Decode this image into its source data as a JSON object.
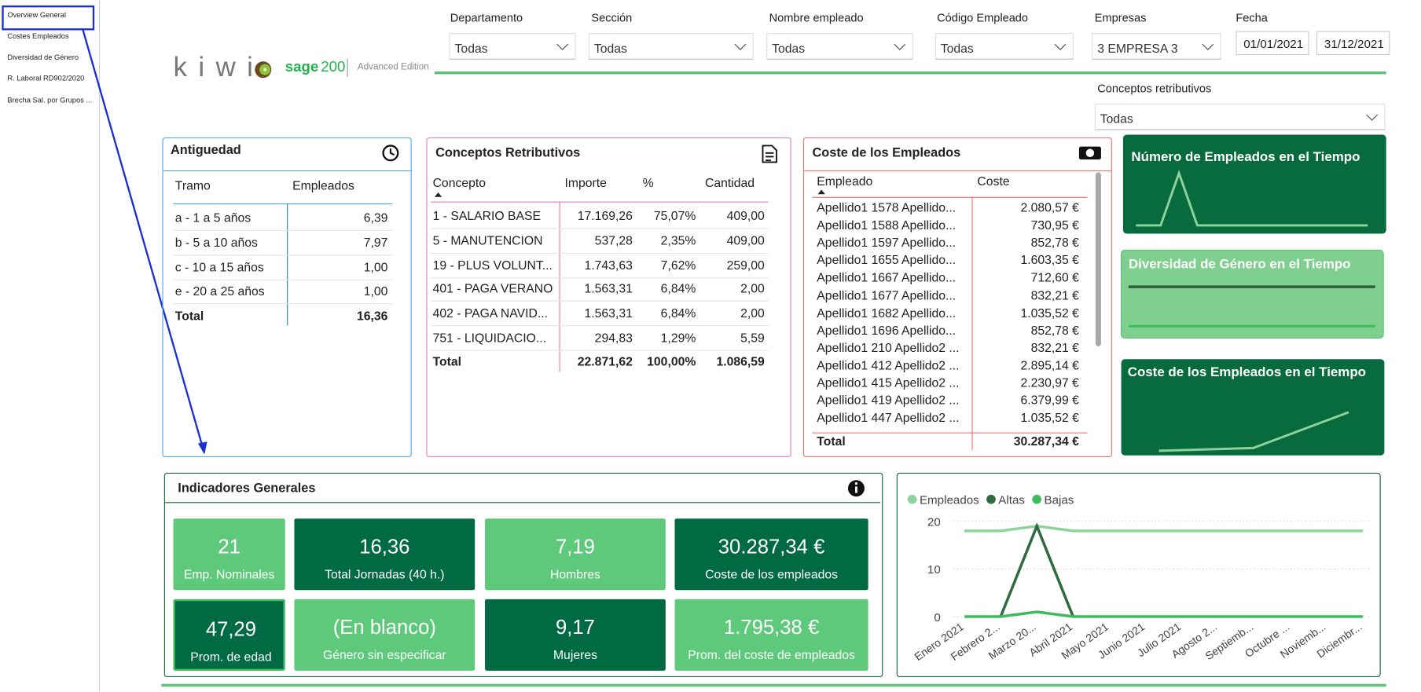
{
  "nav": [
    "Overview General",
    "Costes Empleados",
    "Diversidad de Género",
    "R. Laboral RD902/2020",
    "Brecha Sal. por Grupos ..."
  ],
  "logo": {
    "brand": "k i w i",
    "product": "sage",
    "version": "200",
    "edition": "Advanced Edition"
  },
  "filters": [
    {
      "label": "Departamento",
      "value": "Todas"
    },
    {
      "label": "Sección",
      "value": "Todas"
    },
    {
      "label": "Nombre empleado",
      "value": "Todas"
    },
    {
      "label": "Código Empleado",
      "value": "Todas"
    },
    {
      "label": "Empresas",
      "value": "3 EMPRESA 3"
    },
    {
      "label": "Conceptos retributivos",
      "value": "Todas"
    }
  ],
  "fecha": {
    "label": "Fecha",
    "from": "01/01/2021",
    "to": "31/12/2021"
  },
  "antiguedad": {
    "title": "Antiguedad",
    "columns": [
      "Tramo",
      "Empleados"
    ],
    "rows": [
      [
        "a -  1 a 5 años",
        "6,39"
      ],
      [
        "b - 5 a 10 años",
        "7,97"
      ],
      [
        "c - 10 a 15 años",
        "1,00"
      ],
      [
        "e - 20 a 25 años",
        "1,00"
      ]
    ],
    "total": [
      "Total",
      "16,36"
    ]
  },
  "conceptos": {
    "title": "Conceptos Retributivos",
    "columns": [
      "Concepto",
      "Importe",
      "%",
      "Cantidad"
    ],
    "rows": [
      [
        "1 - SALARIO BASE",
        "17.169,26",
        "75,07%",
        "409,00"
      ],
      [
        "5 - MANUTENCION",
        "537,28",
        "2,35%",
        "409,00"
      ],
      [
        "19 - PLUS VOLUNT...",
        "1.743,63",
        "7,62%",
        "259,00"
      ],
      [
        "401 - PAGA VERANO",
        "1.563,31",
        "6,84%",
        "2,00"
      ],
      [
        "402 - PAGA NAVID...",
        "1.563,31",
        "6,84%",
        "2,00"
      ],
      [
        "751 - LIQUIDACIO...",
        "294,83",
        "1,29%",
        "5,59"
      ]
    ],
    "total": [
      "Total",
      "22.871,62",
      "100,00%",
      "1.086,59"
    ]
  },
  "coste": {
    "title": "Coste de los Empleados",
    "columns": [
      "Empleado",
      "Coste"
    ],
    "rows": [
      [
        "Apellido1 1578 Apellido...",
        "2.080,57 €"
      ],
      [
        "Apellido1 1588 Apellido...",
        "730,95 €"
      ],
      [
        "Apellido1 1597 Apellido...",
        "852,78 €"
      ],
      [
        "Apellido1 1655 Apellido...",
        "1.603,35 €"
      ],
      [
        "Apellido1 1667 Apellido...",
        "712,60 €"
      ],
      [
        "Apellido1 1677 Apellido...",
        "832,21 €"
      ],
      [
        "Apellido1 1682 Apellido...",
        "1.035,52 €"
      ],
      [
        "Apellido1 1696 Apellido...",
        "852,78 €"
      ],
      [
        "Apellido1 210 Apellido2 ...",
        "832,21 €"
      ],
      [
        "Apellido1 412 Apellido2 ...",
        "2.895,14 €"
      ],
      [
        "Apellido1 415 Apellido2 ...",
        "2.230,97 €"
      ],
      [
        "Apellido1 419 Apellido2 ...",
        "6.379,99 €"
      ],
      [
        "Apellido1 447 Apellido2 ...",
        "1.035,52 €"
      ]
    ],
    "total": [
      "Total",
      "30.287,34 €"
    ]
  },
  "tiles": [
    "Número de Empleados en el Tiempo",
    "Diversidad de Género en el Tiempo",
    "Coste de los Empleados en el Tiempo"
  ],
  "indicadores": {
    "title": "Indicadores Generales",
    "cards": [
      {
        "value": "21",
        "label": "Emp. Nominales"
      },
      {
        "value": "16,36",
        "label": "Total Jornadas (40 h.)"
      },
      {
        "value": "7,19",
        "label": "Hombres"
      },
      {
        "value": "30.287,34 €",
        "label": "Coste de los empleados"
      },
      {
        "value": "47,29",
        "label": "Prom. de edad"
      },
      {
        "value": "(En blanco)",
        "label": "Género sin especificar"
      },
      {
        "value": "9,17",
        "label": "Mujeres"
      },
      {
        "value": "1.795,38 €",
        "label": "Prom. del coste de empleados"
      }
    ]
  },
  "chart_data": {
    "type": "line",
    "categories": [
      "Enero 2021",
      "Febrero 2...",
      "Marzo 20...",
      "Abril 2021",
      "Mayo 2021",
      "Junio 2021",
      "Julio 2021",
      "Agosto 2...",
      "Septiemb...",
      "Octubre ...",
      "Noviemb...",
      "Diciembr..."
    ],
    "series": [
      {
        "name": "Empleados",
        "color": "#8ed39c",
        "values": [
          18,
          18,
          19,
          18,
          18,
          18,
          18,
          18,
          18,
          18,
          18,
          18
        ]
      },
      {
        "name": "Altas",
        "color": "#2f6b3f",
        "values": [
          null,
          0,
          19,
          0,
          null,
          null,
          null,
          null,
          null,
          null,
          null,
          null
        ]
      },
      {
        "name": "Bajas",
        "color": "#3dbb5f",
        "values": [
          0,
          0,
          1,
          0,
          0,
          0,
          0,
          0,
          0,
          0,
          0,
          0
        ]
      }
    ],
    "ylim": [
      0,
      20
    ],
    "yticks": [
      0,
      10,
      20
    ],
    "grid": true
  }
}
